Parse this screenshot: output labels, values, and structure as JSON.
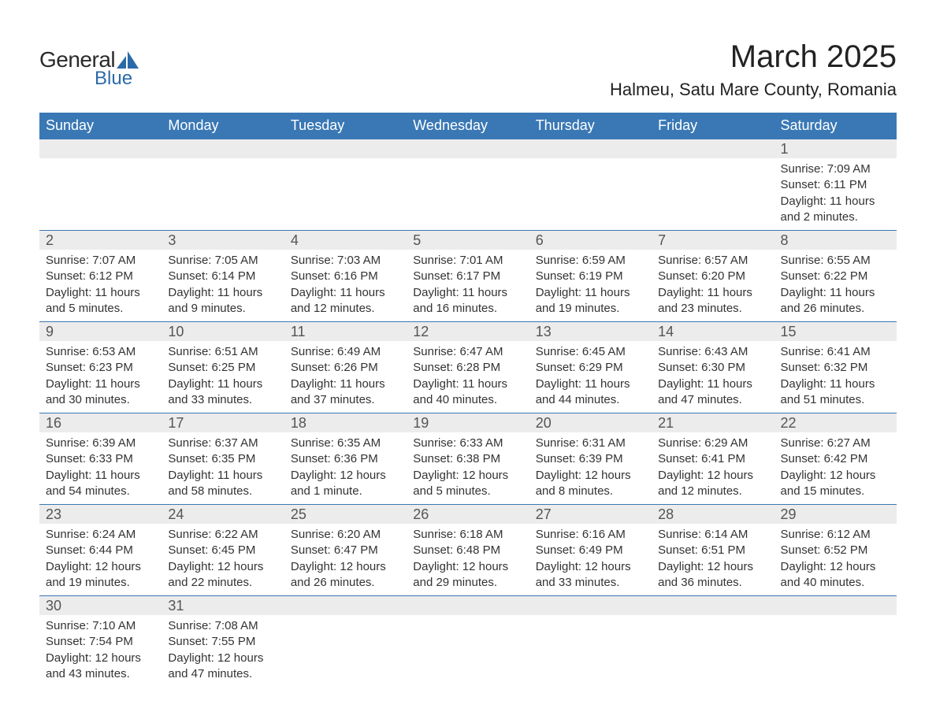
{
  "logo": {
    "text_general": "General",
    "text_blue": "Blue",
    "shape_color": "#2b6aa8"
  },
  "title": "March 2025",
  "location": "Halmeu, Satu Mare County, Romania",
  "colors": {
    "header_bg": "#3a78b5",
    "header_text": "#ffffff",
    "daynum_bg": "#ececec",
    "border": "#3a78b5",
    "body_text": "#333333",
    "title_text": "#222222"
  },
  "day_headers": [
    "Sunday",
    "Monday",
    "Tuesday",
    "Wednesday",
    "Thursday",
    "Friday",
    "Saturday"
  ],
  "weeks": [
    [
      null,
      null,
      null,
      null,
      null,
      null,
      {
        "n": "1",
        "sunrise": "7:09 AM",
        "sunset": "6:11 PM",
        "daylight": "11 hours and 2 minutes."
      }
    ],
    [
      {
        "n": "2",
        "sunrise": "7:07 AM",
        "sunset": "6:12 PM",
        "daylight": "11 hours and 5 minutes."
      },
      {
        "n": "3",
        "sunrise": "7:05 AM",
        "sunset": "6:14 PM",
        "daylight": "11 hours and 9 minutes."
      },
      {
        "n": "4",
        "sunrise": "7:03 AM",
        "sunset": "6:16 PM",
        "daylight": "11 hours and 12 minutes."
      },
      {
        "n": "5",
        "sunrise": "7:01 AM",
        "sunset": "6:17 PM",
        "daylight": "11 hours and 16 minutes."
      },
      {
        "n": "6",
        "sunrise": "6:59 AM",
        "sunset": "6:19 PM",
        "daylight": "11 hours and 19 minutes."
      },
      {
        "n": "7",
        "sunrise": "6:57 AM",
        "sunset": "6:20 PM",
        "daylight": "11 hours and 23 minutes."
      },
      {
        "n": "8",
        "sunrise": "6:55 AM",
        "sunset": "6:22 PM",
        "daylight": "11 hours and 26 minutes."
      }
    ],
    [
      {
        "n": "9",
        "sunrise": "6:53 AM",
        "sunset": "6:23 PM",
        "daylight": "11 hours and 30 minutes."
      },
      {
        "n": "10",
        "sunrise": "6:51 AM",
        "sunset": "6:25 PM",
        "daylight": "11 hours and 33 minutes."
      },
      {
        "n": "11",
        "sunrise": "6:49 AM",
        "sunset": "6:26 PM",
        "daylight": "11 hours and 37 minutes."
      },
      {
        "n": "12",
        "sunrise": "6:47 AM",
        "sunset": "6:28 PM",
        "daylight": "11 hours and 40 minutes."
      },
      {
        "n": "13",
        "sunrise": "6:45 AM",
        "sunset": "6:29 PM",
        "daylight": "11 hours and 44 minutes."
      },
      {
        "n": "14",
        "sunrise": "6:43 AM",
        "sunset": "6:30 PM",
        "daylight": "11 hours and 47 minutes."
      },
      {
        "n": "15",
        "sunrise": "6:41 AM",
        "sunset": "6:32 PM",
        "daylight": "11 hours and 51 minutes."
      }
    ],
    [
      {
        "n": "16",
        "sunrise": "6:39 AM",
        "sunset": "6:33 PM",
        "daylight": "11 hours and 54 minutes."
      },
      {
        "n": "17",
        "sunrise": "6:37 AM",
        "sunset": "6:35 PM",
        "daylight": "11 hours and 58 minutes."
      },
      {
        "n": "18",
        "sunrise": "6:35 AM",
        "sunset": "6:36 PM",
        "daylight": "12 hours and 1 minute."
      },
      {
        "n": "19",
        "sunrise": "6:33 AM",
        "sunset": "6:38 PM",
        "daylight": "12 hours and 5 minutes."
      },
      {
        "n": "20",
        "sunrise": "6:31 AM",
        "sunset": "6:39 PM",
        "daylight": "12 hours and 8 minutes."
      },
      {
        "n": "21",
        "sunrise": "6:29 AM",
        "sunset": "6:41 PM",
        "daylight": "12 hours and 12 minutes."
      },
      {
        "n": "22",
        "sunrise": "6:27 AM",
        "sunset": "6:42 PM",
        "daylight": "12 hours and 15 minutes."
      }
    ],
    [
      {
        "n": "23",
        "sunrise": "6:24 AM",
        "sunset": "6:44 PM",
        "daylight": "12 hours and 19 minutes."
      },
      {
        "n": "24",
        "sunrise": "6:22 AM",
        "sunset": "6:45 PM",
        "daylight": "12 hours and 22 minutes."
      },
      {
        "n": "25",
        "sunrise": "6:20 AM",
        "sunset": "6:47 PM",
        "daylight": "12 hours and 26 minutes."
      },
      {
        "n": "26",
        "sunrise": "6:18 AM",
        "sunset": "6:48 PM",
        "daylight": "12 hours and 29 minutes."
      },
      {
        "n": "27",
        "sunrise": "6:16 AM",
        "sunset": "6:49 PM",
        "daylight": "12 hours and 33 minutes."
      },
      {
        "n": "28",
        "sunrise": "6:14 AM",
        "sunset": "6:51 PM",
        "daylight": "12 hours and 36 minutes."
      },
      {
        "n": "29",
        "sunrise": "6:12 AM",
        "sunset": "6:52 PM",
        "daylight": "12 hours and 40 minutes."
      }
    ],
    [
      {
        "n": "30",
        "sunrise": "7:10 AM",
        "sunset": "7:54 PM",
        "daylight": "12 hours and 43 minutes."
      },
      {
        "n": "31",
        "sunrise": "7:08 AM",
        "sunset": "7:55 PM",
        "daylight": "12 hours and 47 minutes."
      },
      null,
      null,
      null,
      null,
      null
    ]
  ],
  "labels": {
    "sunrise": "Sunrise: ",
    "sunset": "Sunset: ",
    "daylight": "Daylight: "
  }
}
